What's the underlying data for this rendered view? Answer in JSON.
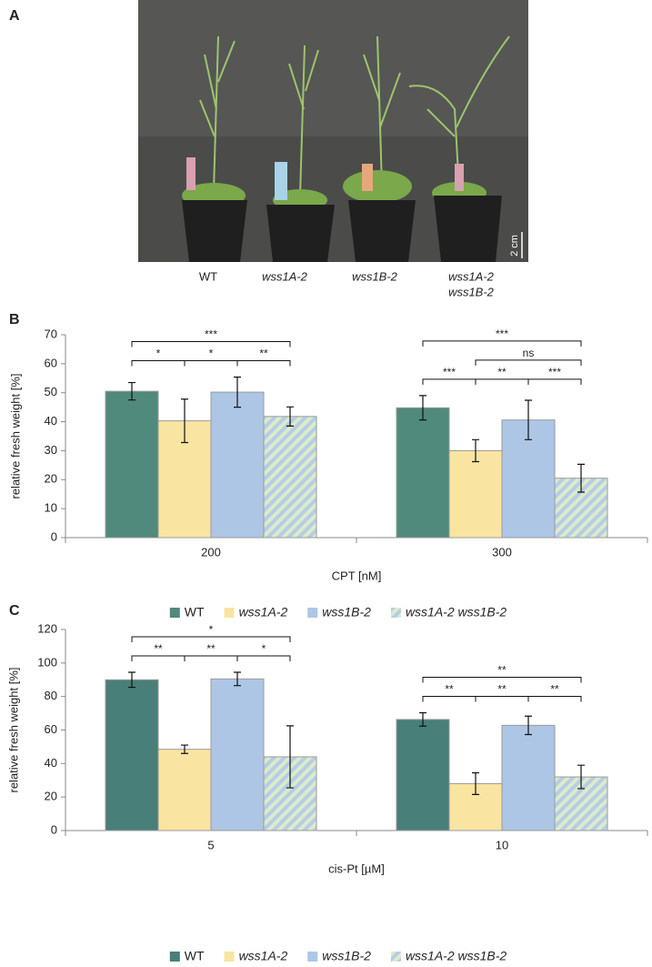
{
  "panel_a": {
    "label": "A",
    "genotypes": [
      "WT",
      "wss1A-2",
      "wss1B-2",
      [
        "wss1A-2",
        "wss1B-2"
      ]
    ],
    "scale_bar": "2 cm"
  },
  "chart_data": [
    {
      "type": "bar",
      "label": "B",
      "x_label": "CPT [nM]",
      "y_label": "relative fresh weight [%]",
      "categories": [
        "200",
        "300"
      ],
      "series": [
        {
          "name": "WT",
          "color": "#4f8a7c",
          "values": [
            50.5,
            44.8
          ],
          "errors": [
            3.0,
            4.2
          ]
        },
        {
          "name": "wss1A-2",
          "color": "#f9e4a2",
          "values": [
            40.3,
            30.0
          ],
          "errors": [
            7.5,
            3.8
          ]
        },
        {
          "name": "wss1B-2",
          "color": "#adc6e5",
          "values": [
            50.2,
            40.6
          ],
          "errors": [
            5.2,
            6.8
          ]
        },
        {
          "name": "wss1A-2 wss1B-2",
          "color": "#dcebc9",
          "hatch_color": "#b5cde6",
          "values": [
            41.8,
            20.5
          ],
          "errors": [
            3.3,
            4.8
          ]
        }
      ],
      "annotations": [
        {
          "category": 0,
          "from": 0,
          "to": 1,
          "text": "*"
        },
        {
          "category": 0,
          "from": 1,
          "to": 2,
          "text": "*"
        },
        {
          "category": 0,
          "from": 2,
          "to": 3,
          "text": "**"
        },
        {
          "category": 0,
          "from": 0,
          "to": 3,
          "text": "***"
        },
        {
          "category": 1,
          "from": 0,
          "to": 1,
          "text": "***"
        },
        {
          "category": 1,
          "from": 1,
          "to": 2,
          "text": "**"
        },
        {
          "category": 1,
          "from": 2,
          "to": 3,
          "text": "***"
        },
        {
          "category": 1,
          "from": 1,
          "to": 3,
          "text": "ns"
        },
        {
          "category": 1,
          "from": 0,
          "to": 3,
          "text": "***"
        }
      ],
      "ylim": [
        0,
        70
      ],
      "yticks": [
        0,
        10,
        20,
        30,
        40,
        50,
        60,
        70
      ],
      "legend": "bottom"
    },
    {
      "type": "bar",
      "label": "C",
      "x_label": "cis-Pt [µM]",
      "y_label": "relative fresh weight [%]",
      "categories": [
        "5",
        "10"
      ],
      "series": [
        {
          "name": "WT",
          "color": "#487f78",
          "values": [
            90.0,
            66.3
          ],
          "errors": [
            4.5,
            4.0
          ]
        },
        {
          "name": "wss1A-2",
          "color": "#f9e4a2",
          "values": [
            48.5,
            28.0
          ],
          "errors": [
            2.5,
            6.5
          ]
        },
        {
          "name": "wss1B-2",
          "color": "#adc6e5",
          "values": [
            90.5,
            62.8
          ],
          "errors": [
            4.0,
            5.5
          ]
        },
        {
          "name": "wss1A-2 wss1B-2",
          "color": "#dcebc9",
          "hatch_color": "#b5cde6",
          "values": [
            44.0,
            32.0
          ],
          "errors": [
            18.5,
            7.0
          ]
        }
      ],
      "annotations": [
        {
          "category": 0,
          "from": 0,
          "to": 1,
          "text": "**"
        },
        {
          "category": 0,
          "from": 1,
          "to": 2,
          "text": "**"
        },
        {
          "category": 0,
          "from": 2,
          "to": 3,
          "text": "*"
        },
        {
          "category": 0,
          "from": 0,
          "to": 3,
          "text": "*"
        },
        {
          "category": 1,
          "from": 0,
          "to": 1,
          "text": "**"
        },
        {
          "category": 1,
          "from": 1,
          "to": 2,
          "text": "**"
        },
        {
          "category": 1,
          "from": 2,
          "to": 3,
          "text": "**"
        },
        {
          "category": 1,
          "from": 0,
          "to": 3,
          "text": "**"
        }
      ],
      "ylim": [
        0,
        120
      ],
      "yticks": [
        0,
        20,
        40,
        60,
        80,
        100,
        120
      ],
      "legend": "bottom"
    }
  ]
}
